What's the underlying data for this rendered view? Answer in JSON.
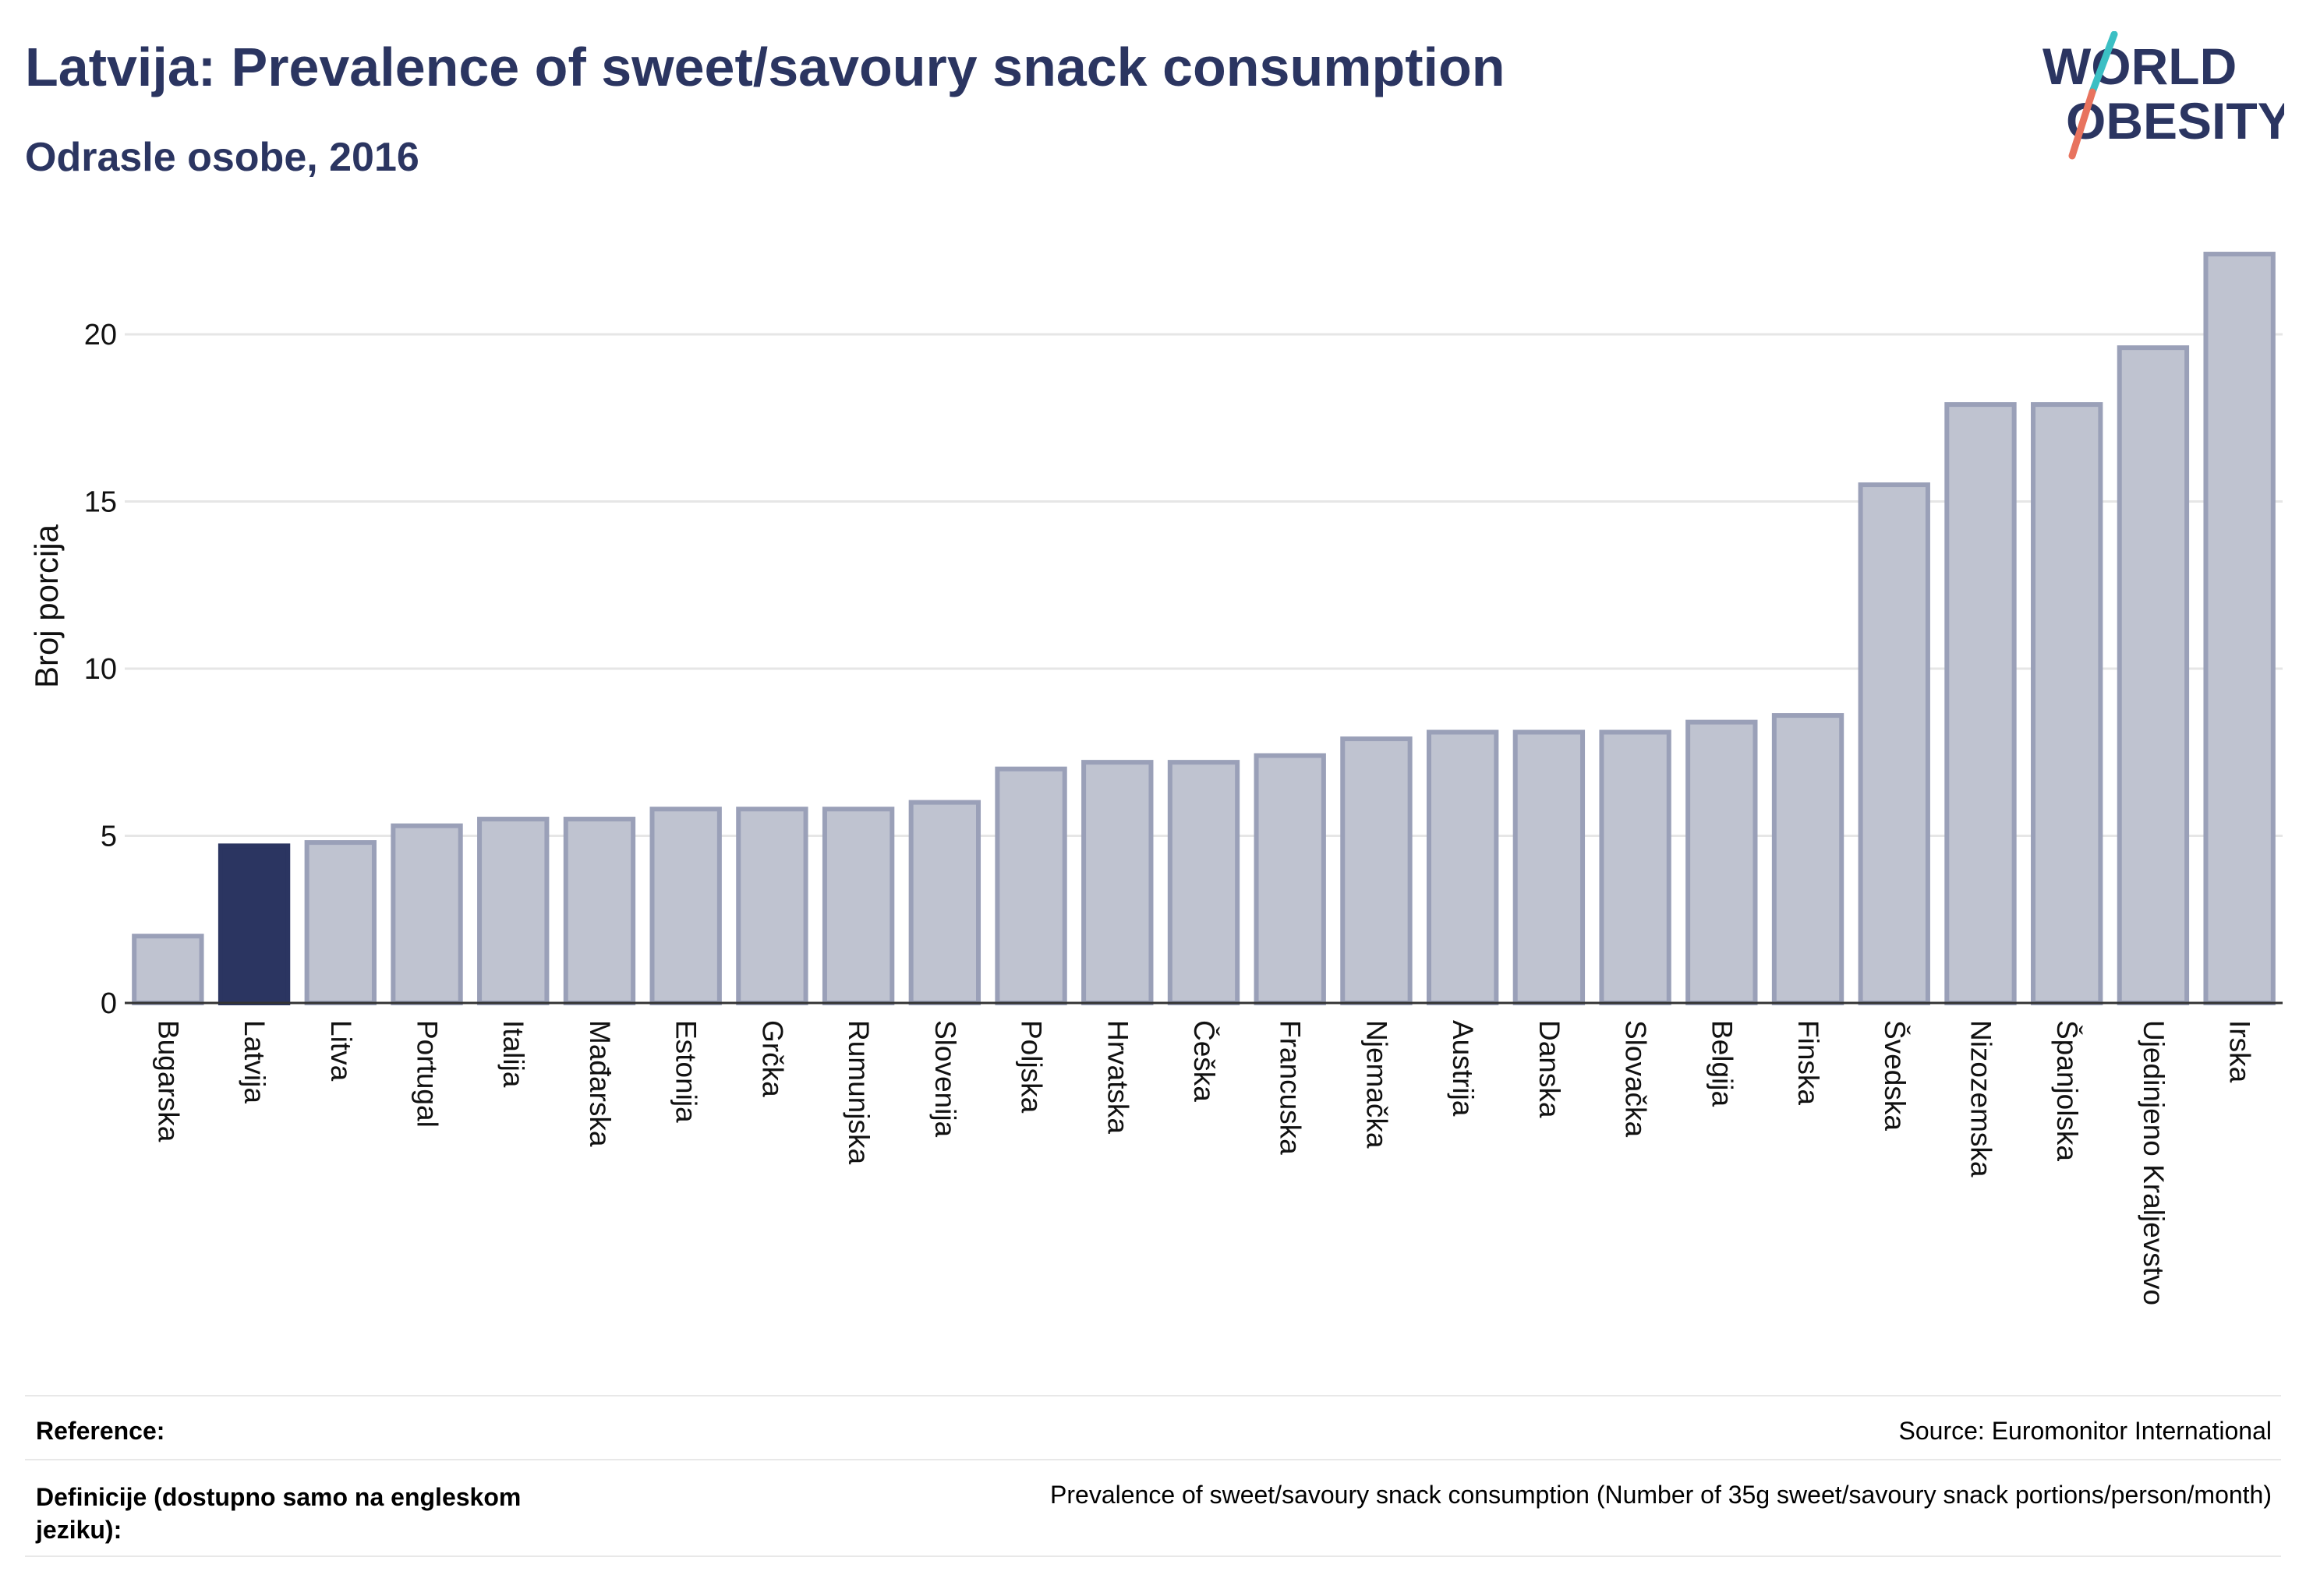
{
  "header": {
    "title": "Latvija: Prevalence of sweet/savoury snack consumption",
    "subtitle": "Odrasle osobe, 2016"
  },
  "logo": {
    "line1": "WORLD",
    "line2": "OBESITY",
    "colors": {
      "text": "#2b3561",
      "slash_teal": "#3bbfc4",
      "slash_coral": "#e8735e"
    }
  },
  "chart_data": {
    "type": "bar",
    "ylabel": "Broj porcija",
    "xlabel": "",
    "ylim": [
      0,
      23
    ],
    "yticks": [
      0,
      5,
      10,
      15,
      20
    ],
    "grid": true,
    "highlight": "Latvija",
    "colors": {
      "bar": "#bfc3d0",
      "bar_edge": "#9aa0b8",
      "highlight": "#2b3561"
    },
    "categories": [
      "Bugarska",
      "Latvija",
      "Litva",
      "Portugal",
      "Italija",
      "Mađarska",
      "Estonija",
      "Grčka",
      "Rumunjska",
      "Slovenija",
      "Poljska",
      "Hrvatska",
      "Češka",
      "Francuska",
      "Njemačka",
      "Austrija",
      "Danska",
      "Slovačka",
      "Belgija",
      "Finska",
      "Švedska",
      "Nizozemska",
      "Španjolska",
      "Ujedinjeno Kraljevstvo",
      "Irska"
    ],
    "values": [
      2.0,
      4.7,
      4.8,
      5.3,
      5.5,
      5.5,
      5.8,
      5.8,
      5.8,
      6.0,
      7.0,
      7.2,
      7.2,
      7.4,
      7.9,
      8.1,
      8.1,
      8.1,
      8.4,
      8.6,
      15.5,
      17.9,
      17.9,
      19.6,
      22.4
    ]
  },
  "footer": {
    "reference_label": "Reference:",
    "reference_value": "Source: Euromonitor International",
    "definition_label": "Definicije (dostupno samo na engleskom jeziku):",
    "definition_value": "Prevalence of sweet/savoury snack consumption (Number of 35g sweet/savoury snack portions/person/month)"
  }
}
